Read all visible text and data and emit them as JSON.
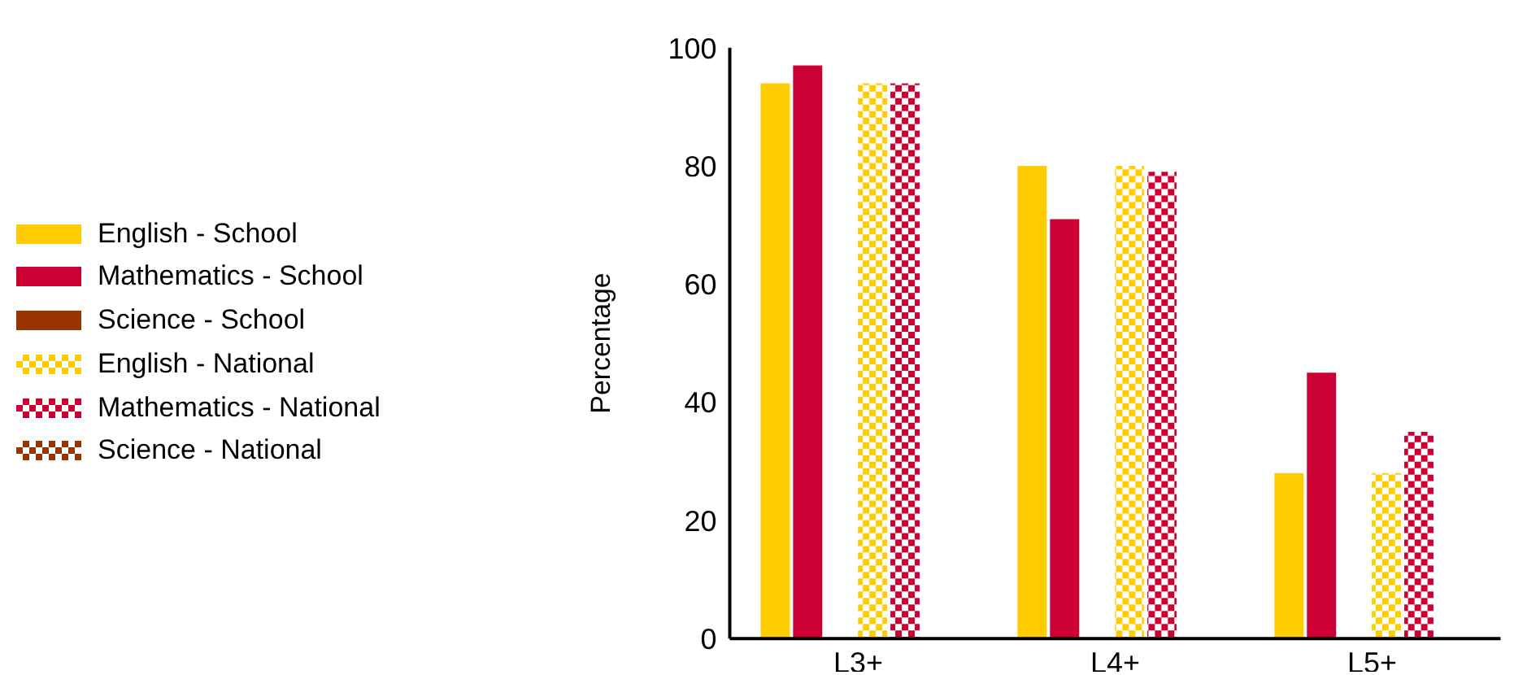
{
  "chart_data": {
    "type": "bar",
    "ylabel": "Percentage",
    "categories": [
      "L3+",
      "L4+",
      "L5+"
    ],
    "ylim": [
      0,
      100
    ],
    "yticks": [
      0,
      20,
      40,
      60,
      80,
      100
    ],
    "legend": "left",
    "grid": false,
    "series": [
      {
        "name": "English - School",
        "color": "#ffcc00",
        "values": [
          94,
          80,
          28
        ]
      },
      {
        "name": "Mathematics - School",
        "color": "#cc0033",
        "values": [
          97,
          71,
          45
        ]
      },
      {
        "name": "Science - School",
        "color": "#993300",
        "values": [
          null,
          null,
          null
        ]
      },
      {
        "name": "English - National",
        "color": "#ffcc00",
        "values": [
          94,
          80,
          28
        ]
      },
      {
        "name": "Mathematics - National",
        "color": "#cc0033",
        "values": [
          94,
          79,
          35
        ]
      },
      {
        "name": "Science - National",
        "color": "#993300",
        "values": [
          null,
          null,
          null
        ]
      }
    ]
  }
}
